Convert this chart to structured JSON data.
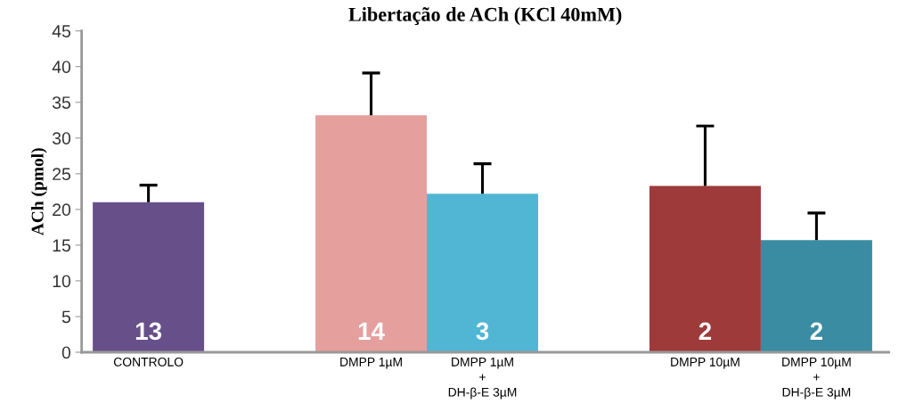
{
  "chart_data": {
    "type": "bar",
    "title": "Libertação de ACh (KCl 40mM)",
    "ylabel": "ACh (pmol)",
    "categories": [
      "CONTROLO",
      null,
      "DMPP 1µM",
      "DMPP 1µM\n+\nDH-β-E 3µM",
      null,
      "DMPP 10µM",
      "DMPP 10µM\n+\nDH-β-E 3µM"
    ],
    "values": [
      21.0,
      null,
      33.2,
      22.2,
      null,
      23.3,
      15.7
    ],
    "errors": [
      [
        21.0,
        23.4
      ],
      null,
      [
        33.2,
        39.1
      ],
      [
        22.2,
        26.4
      ],
      null,
      [
        23.3,
        31.7
      ],
      [
        15.7,
        19.5
      ]
    ],
    "colors": [
      "#67508a",
      null,
      "#e5a09e",
      "#50b6d4",
      null,
      "#9e3a3a",
      "#3a8ca3"
    ],
    "annotations": [
      "13",
      "14",
      "3",
      "2",
      "2"
    ],
    "ylim": [
      0,
      45
    ],
    "yticks": [
      0,
      5,
      10,
      15,
      20,
      25,
      30,
      35,
      40,
      45
    ],
    "grid": false
  }
}
